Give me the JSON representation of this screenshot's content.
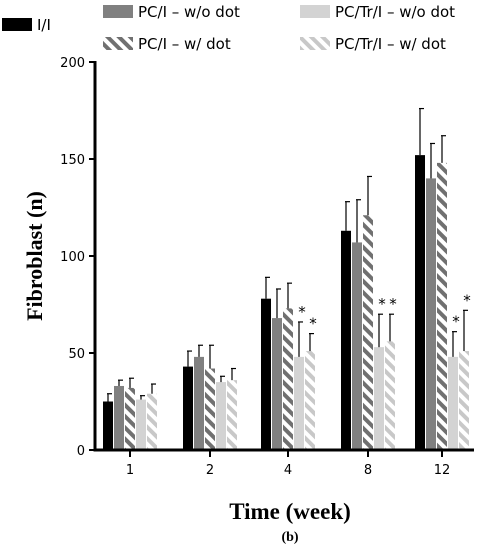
{
  "chart_data": {
    "type": "bar",
    "xlabel": "Time (week)",
    "ylabel": "Fibroblast (n)",
    "caption": "(b)",
    "categories": [
      "1",
      "2",
      "4",
      "8",
      "12"
    ],
    "ylim": [
      0,
      200
    ],
    "yticks": [
      0,
      50,
      100,
      150,
      200
    ],
    "grid": false,
    "legend_position": "top",
    "series": [
      {
        "name": "I/I",
        "color": "#000000",
        "pattern": "solid",
        "values": [
          25,
          43,
          78,
          113,
          152
        ],
        "errors": [
          4,
          8,
          11,
          15,
          24
        ]
      },
      {
        "name": "PC/I – w/o dot",
        "color": "#808080",
        "pattern": "solid",
        "values": [
          33,
          48,
          68,
          107,
          140
        ],
        "errors": [
          3,
          6,
          15,
          22,
          18
        ]
      },
      {
        "name": "PC/I – w/ dot",
        "color": "#808080",
        "pattern": "hatched",
        "values": [
          32,
          42,
          73,
          121,
          148
        ],
        "errors": [
          5,
          12,
          13,
          20,
          14
        ]
      },
      {
        "name": "PC/Tr/I – w/o dot",
        "color": "#d3d3d3",
        "pattern": "solid",
        "values": [
          26,
          35,
          48,
          53,
          48
        ],
        "errors": [
          2,
          3,
          18,
          17,
          13
        ]
      },
      {
        "name": "PC/Tr/I – w/ dot",
        "color": "#d3d3d3",
        "pattern": "hatched",
        "values": [
          29,
          36,
          51,
          56,
          51
        ],
        "errors": [
          5,
          6,
          9,
          14,
          21
        ]
      }
    ],
    "significance": [
      {
        "category": "4",
        "series": "PC/Tr/I – w/o dot",
        "mark": "*"
      },
      {
        "category": "4",
        "series": "PC/Tr/I – w/ dot",
        "mark": "*"
      },
      {
        "category": "8",
        "series": "PC/Tr/I – w/o dot",
        "mark": "*"
      },
      {
        "category": "8",
        "series": "PC/Tr/I – w/ dot",
        "mark": "*"
      },
      {
        "category": "12",
        "series": "PC/Tr/I – w/o dot",
        "mark": "*"
      },
      {
        "category": "12",
        "series": "PC/Tr/I – w/ dot",
        "mark": "*"
      }
    ]
  }
}
